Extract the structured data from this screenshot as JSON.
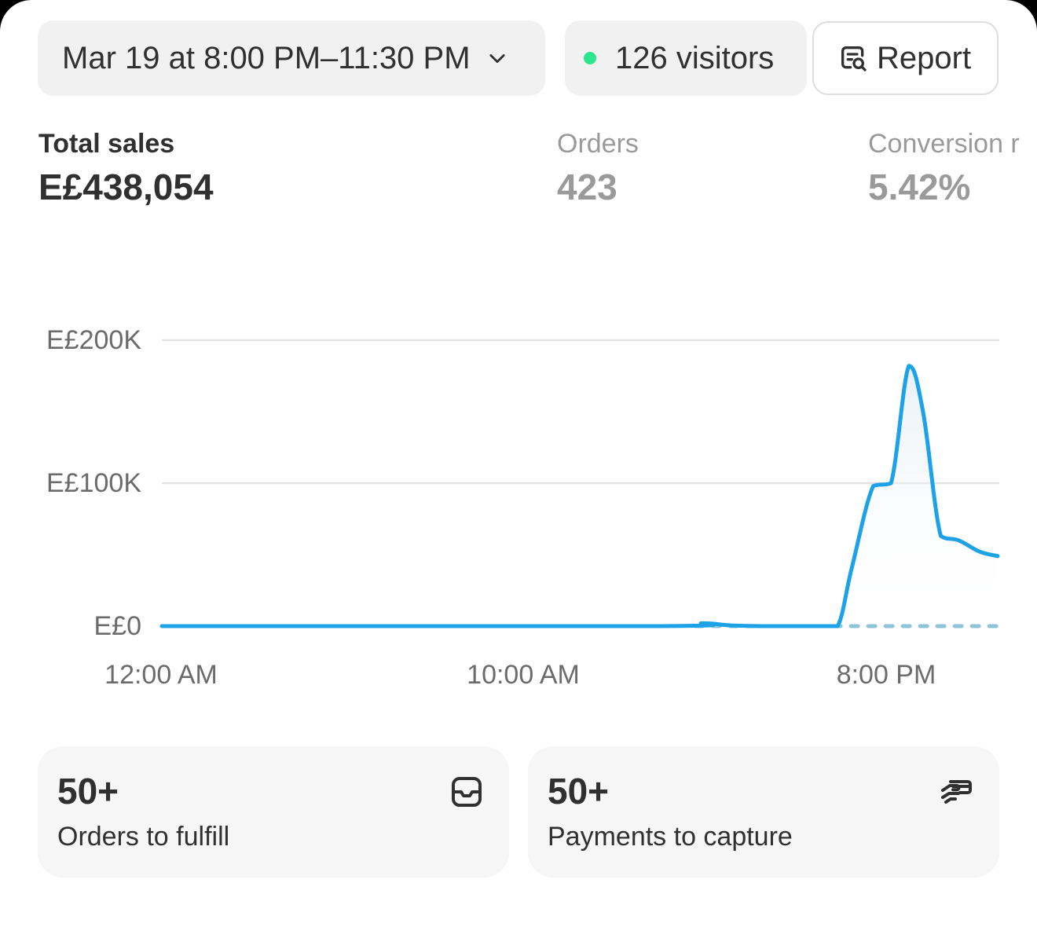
{
  "header": {
    "date_range": "Mar 19 at 8:00 PM–11:30 PM",
    "visitors": "126 visitors",
    "report_label": "Report",
    "live_dot_color": "#2ee58f"
  },
  "metrics": [
    {
      "label": "Total sales",
      "value": "E£438,054",
      "active": true
    },
    {
      "label": "Orders",
      "value": "423",
      "active": false
    },
    {
      "label": "Conversion r",
      "value": "5.42%",
      "active": false
    }
  ],
  "chart_data": {
    "type": "line",
    "title": "",
    "xlabel": "",
    "ylabel": "",
    "y_ticks": [
      "E£200K",
      "E£100K",
      "E£0"
    ],
    "x_ticks": [
      "12:00 AM",
      "10:00 AM",
      "8:00 PM"
    ],
    "ylim": [
      0,
      200000
    ],
    "x_unit": "hours since 12:00 AM",
    "line_color": "#1da1e7",
    "comparison_color": "#8ec3d8",
    "series": [
      {
        "name": "",
        "style": "solid",
        "x": [
          0,
          14,
          15.2,
          16,
          17,
          18,
          18.5,
          19,
          19.4,
          20,
          20.5,
          21,
          21.4,
          21.9,
          22.4,
          23,
          23.5
        ],
        "y": [
          0,
          0,
          2000,
          500,
          0,
          0,
          0,
          0,
          41000,
          98000,
          100000,
          182000,
          150000,
          63000,
          60000,
          52000,
          49000
        ]
      },
      {
        "name": "",
        "style": "dashed",
        "x": [
          15,
          23.5
        ],
        "y": [
          0,
          0
        ]
      }
    ]
  },
  "cards": [
    {
      "count": "50+",
      "label": "Orders to fulfill",
      "icon": "inbox-icon"
    },
    {
      "count": "50+",
      "label": "Payments to capture",
      "icon": "payment-hand-icon"
    }
  ]
}
